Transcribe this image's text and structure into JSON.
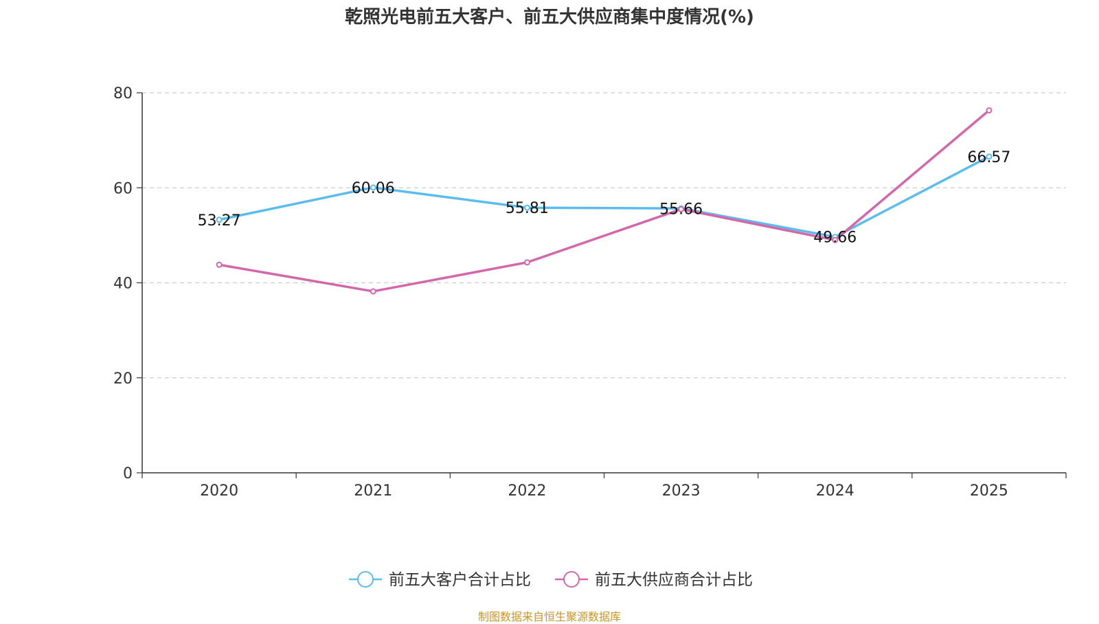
{
  "title": "乾照光电前五大客户、前五大供应商集中度情况(%)",
  "source": "制图数据来自恒生聚源数据库",
  "colors": {
    "customers": "#5bbcee",
    "suppliers": "#d467aa"
  },
  "chart_data": {
    "type": "line",
    "title": "乾照光电前五大客户、前五大供应商集中度情况(%)",
    "categories": [
      "2020",
      "2021",
      "2022",
      "2023",
      "2024",
      "2025"
    ],
    "ylim": [
      0,
      80
    ],
    "yticks": [
      0,
      20,
      40,
      60,
      80
    ],
    "grid": true,
    "legend": "bottom",
    "series": [
      {
        "name": "前五大客户合计占比",
        "values": [
          53.27,
          60.06,
          55.81,
          55.66,
          49.66,
          66.57
        ],
        "labels": [
          "53.27",
          "60.06",
          "55.81",
          "55.66",
          "49.66",
          "66.57"
        ]
      },
      {
        "name": "前五大供应商合计占比",
        "values": [
          43.8,
          38.2,
          44.3,
          55.5,
          49.0,
          76.3
        ]
      }
    ]
  }
}
